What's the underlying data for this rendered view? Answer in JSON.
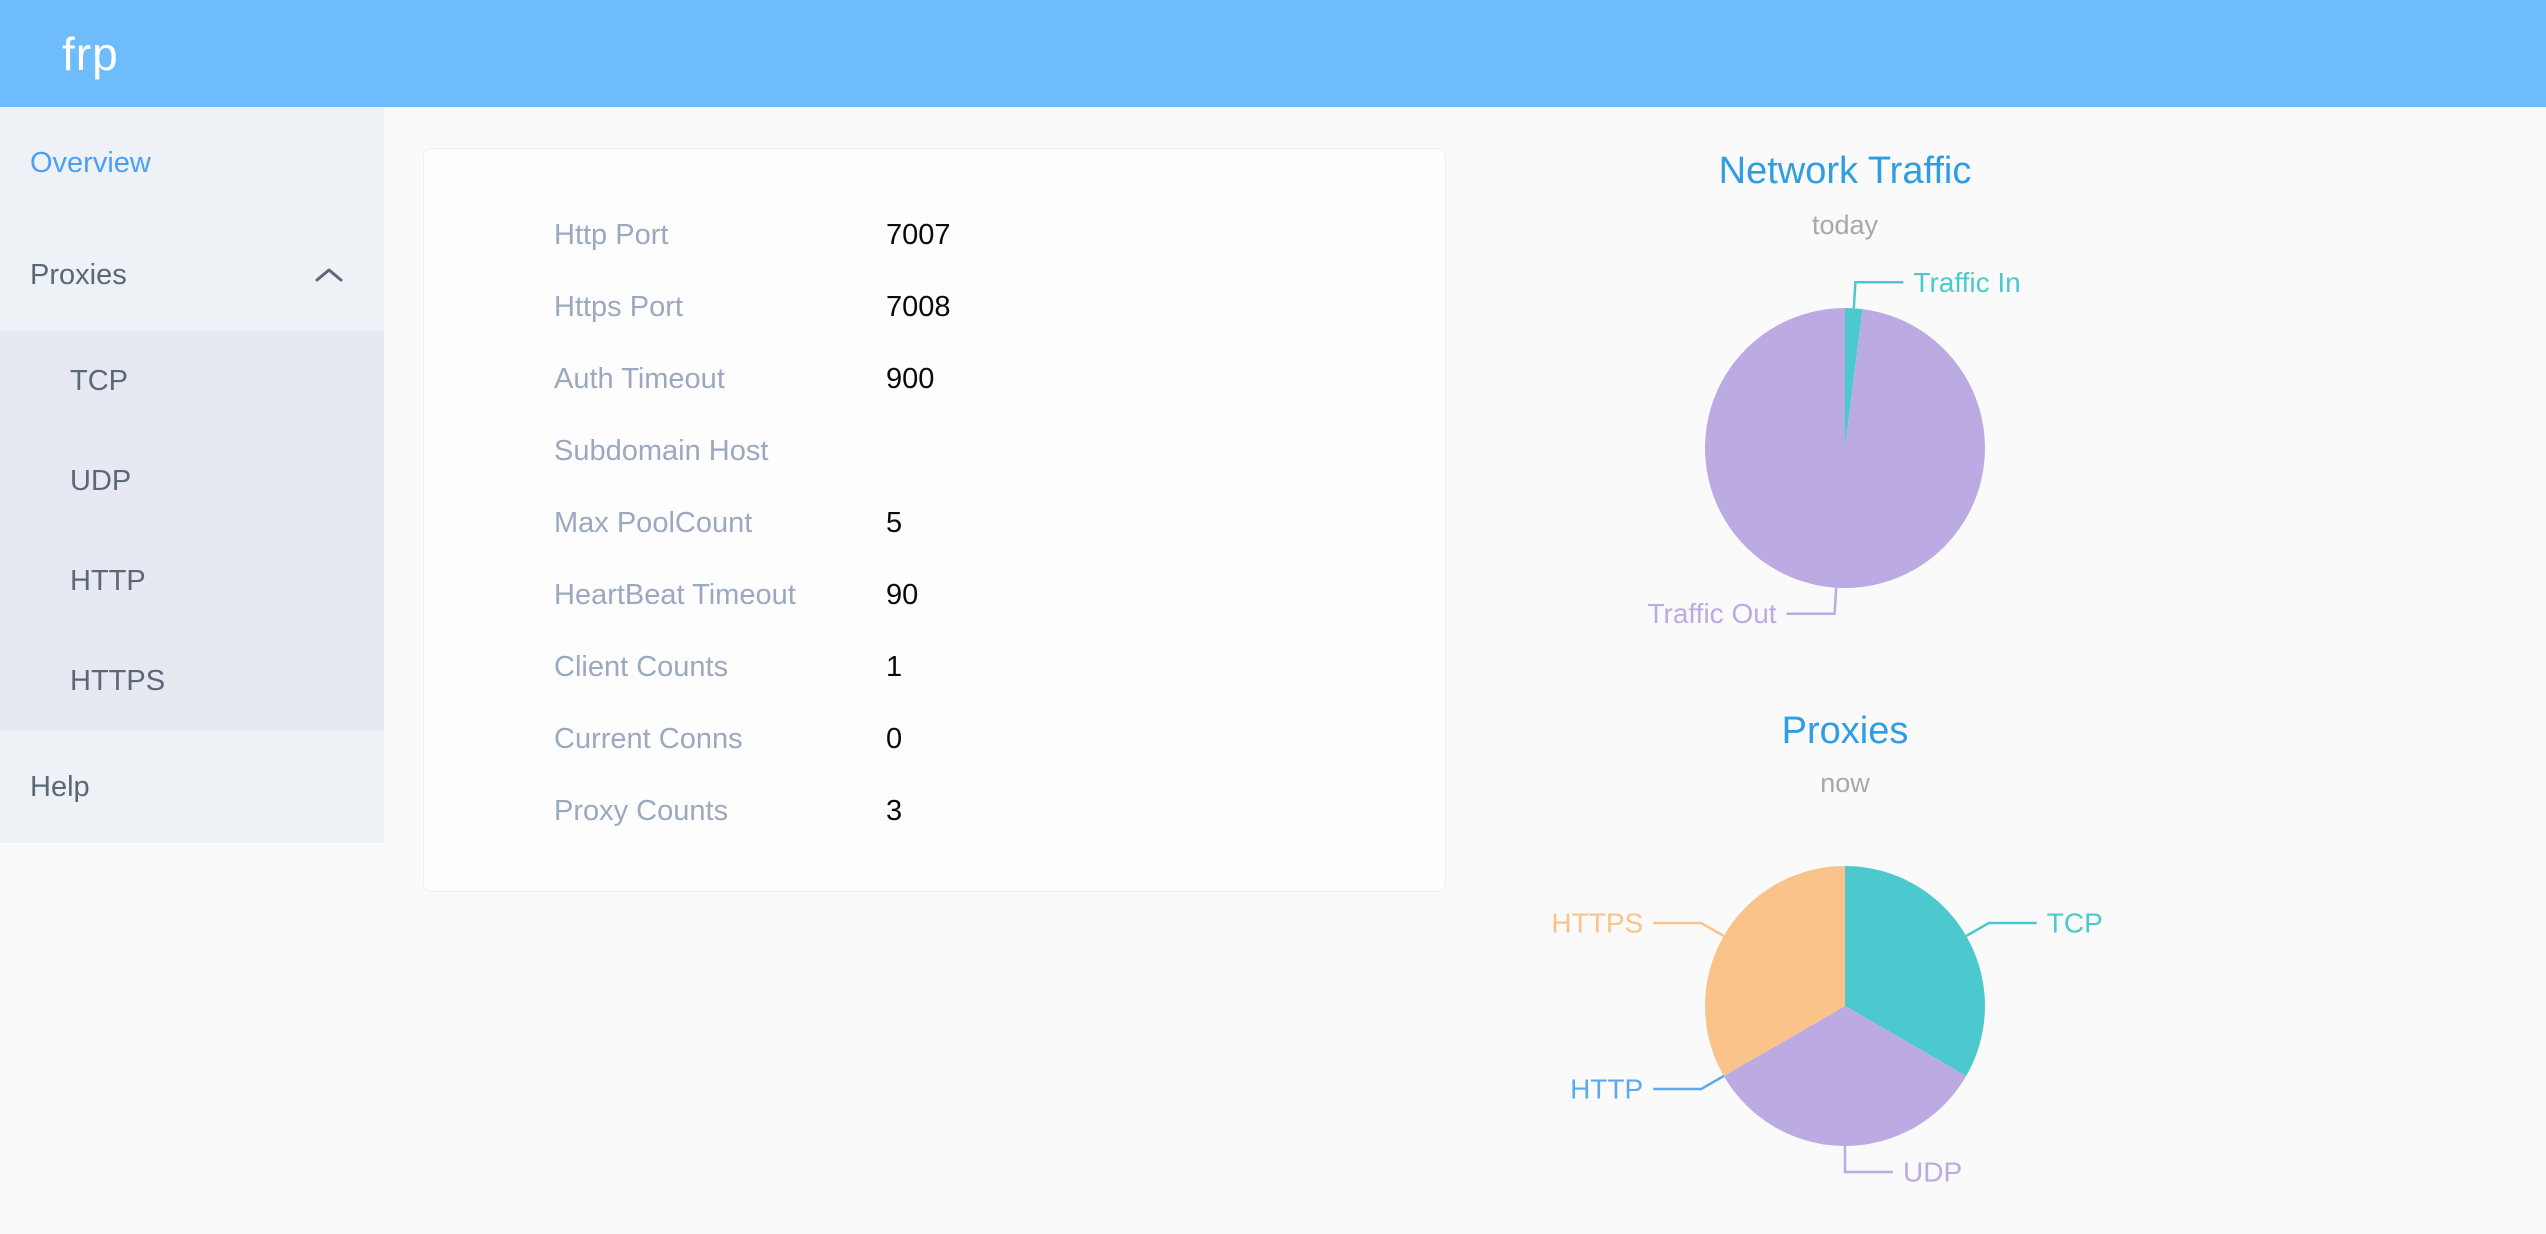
{
  "header": {
    "logo": "frp",
    "bg_color": "#6ebcfc"
  },
  "sidebar": {
    "items": [
      {
        "label": "Overview",
        "active": true
      },
      {
        "label": "Proxies",
        "expanded": true
      },
      {
        "label": "Help"
      }
    ],
    "proxies_submenu": [
      "TCP",
      "UDP",
      "HTTP",
      "HTTPS"
    ],
    "active_color": "#4a9ff8",
    "text_color": "#5a6877"
  },
  "overview_card": {
    "rows": [
      {
        "label": "Http Port",
        "value": "7007"
      },
      {
        "label": "Https Port",
        "value": "7008"
      },
      {
        "label": "Auth Timeout",
        "value": "900"
      },
      {
        "label": "Subdomain Host",
        "value": ""
      },
      {
        "label": "Max PoolCount",
        "value": "5"
      },
      {
        "label": "HeartBeat Timeout",
        "value": "90"
      },
      {
        "label": "Client Counts",
        "value": "1"
      },
      {
        "label": "Current Conns",
        "value": "0"
      },
      {
        "label": "Proxy Counts",
        "value": "3"
      }
    ]
  },
  "chart_data": [
    {
      "type": "pie",
      "title": "Network Traffic",
      "subtitle": "today",
      "labels": [
        "Traffic In",
        "Traffic Out"
      ],
      "values": [
        2,
        98
      ],
      "values_unit": "estimated percent share of today's traffic",
      "colors": [
        "#4cc9ce",
        "#bcaae2"
      ],
      "label_sides": [
        "right",
        "left"
      ],
      "legend": "none",
      "title_color": "#2f9de4",
      "subtitle_color": "#a8a8a8"
    },
    {
      "type": "pie",
      "title": "Proxies",
      "subtitle": "now",
      "labels": [
        "TCP",
        "UDP",
        "HTTP",
        "HTTPS"
      ],
      "values": [
        1,
        1,
        0,
        1
      ],
      "values_unit": "proxy count per type",
      "colors": [
        "#4cc9ce",
        "#bcaae2",
        "#5ea8ef",
        "#f9c38a"
      ],
      "label_sides": [
        "right",
        "right",
        "left",
        "left"
      ],
      "legend": "none",
      "title_color": "#2f9de4",
      "subtitle_color": "#a8a8a8"
    }
  ]
}
